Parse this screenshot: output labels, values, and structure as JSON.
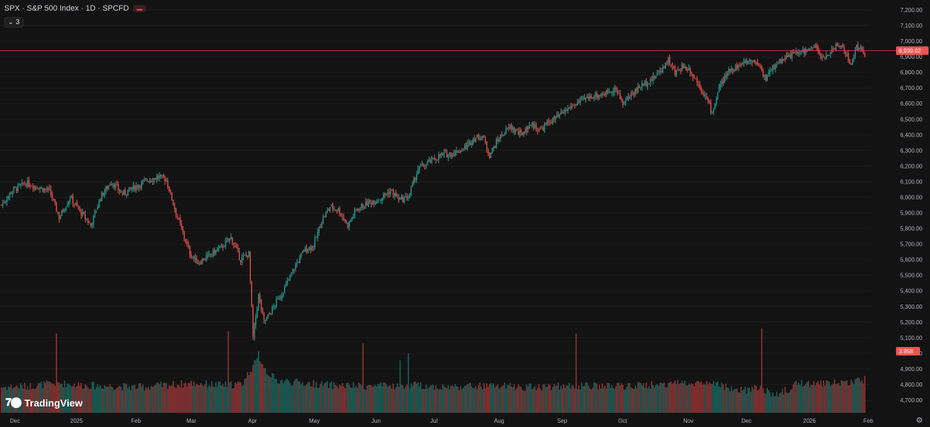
{
  "header": {
    "title": "SPX · S&P 500 Index · 1D · SPCFD",
    "indicator_label": "3"
  },
  "logo": {
    "text": "TradingView"
  },
  "colors": {
    "background": "#131313",
    "up": "#26a69a",
    "down": "#ef5350",
    "volume_up": "#1f6f67",
    "volume_down": "#a43a3a",
    "price_line": "#d04a4a",
    "grid": "#1c1c1c"
  },
  "chart_data": {
    "type": "candlestick",
    "title": "SPX · S&P 500 Index · 1D · SPCFD",
    "ylim": [
      4650,
      7250
    ],
    "y_ticks": [
      "7,200.00",
      "7,100.00",
      "7,000.00",
      "6,900.00",
      "6,800.00",
      "6,700.00",
      "6,600.00",
      "6,500.00",
      "6,400.00",
      "6,300.00",
      "6,200.00",
      "6,100.00",
      "6,000.00",
      "5,900.00",
      "5,800.00",
      "5,700.00",
      "5,600.00",
      "5,500.00",
      "5,400.00",
      "5,300.00",
      "5,200.00",
      "5,100.00",
      "5,000.00",
      "4,900.00",
      "4,800.00",
      "4,700.00"
    ],
    "x_ticks": [
      "Dec",
      "2025",
      "Feb",
      "Mar",
      "Apr",
      "May",
      "Jun",
      "Jul",
      "Aug",
      "Sep",
      "Oct",
      "Nov",
      "Dec",
      "2026",
      "Feb"
    ],
    "last_price": 6939.02,
    "last_price_label": "6,939.02",
    "volume_label": "3.958",
    "close_path": [
      [
        0,
        5950
      ],
      [
        8,
        6045
      ],
      [
        18,
        6090
      ],
      [
        28,
        6060
      ],
      [
        35,
        6040
      ],
      [
        42,
        5870
      ],
      [
        50,
        6000
      ],
      [
        58,
        5900
      ],
      [
        65,
        5820
      ],
      [
        72,
        6000
      ],
      [
        80,
        6100
      ],
      [
        88,
        6020
      ],
      [
        96,
        6060
      ],
      [
        106,
        6110
      ],
      [
        115,
        6130
      ],
      [
        120,
        6110
      ],
      [
        127,
        5900
      ],
      [
        137,
        5640
      ],
      [
        143,
        5580
      ],
      [
        150,
        5620
      ],
      [
        160,
        5680
      ],
      [
        167,
        5740
      ],
      [
        174,
        5600
      ],
      [
        180,
        5640
      ],
      [
        183,
        5100
      ],
      [
        187,
        5370
      ],
      [
        191,
        5200
      ],
      [
        195,
        5250
      ],
      [
        200,
        5330
      ],
      [
        205,
        5400
      ],
      [
        212,
        5530
      ],
      [
        220,
        5660
      ],
      [
        227,
        5690
      ],
      [
        233,
        5850
      ],
      [
        239,
        5940
      ],
      [
        245,
        5920
      ],
      [
        252,
        5820
      ],
      [
        258,
        5920
      ],
      [
        266,
        5960
      ],
      [
        275,
        5990
      ],
      [
        283,
        6040
      ],
      [
        290,
        5980
      ],
      [
        296,
        6000
      ],
      [
        303,
        6180
      ],
      [
        312,
        6230
      ],
      [
        320,
        6270
      ],
      [
        328,
        6280
      ],
      [
        336,
        6310
      ],
      [
        344,
        6380
      ],
      [
        350,
        6390
      ],
      [
        355,
        6270
      ],
      [
        362,
        6380
      ],
      [
        370,
        6450
      ],
      [
        378,
        6400
      ],
      [
        385,
        6470
      ],
      [
        392,
        6430
      ],
      [
        398,
        6480
      ],
      [
        406,
        6520
      ],
      [
        414,
        6580
      ],
      [
        422,
        6620
      ],
      [
        430,
        6650
      ],
      [
        438,
        6660
      ],
      [
        446,
        6700
      ],
      [
        452,
        6600
      ],
      [
        458,
        6660
      ],
      [
        466,
        6720
      ],
      [
        474,
        6760
      ],
      [
        480,
        6820
      ],
      [
        485,
        6880
      ],
      [
        490,
        6790
      ],
      [
        495,
        6840
      ],
      [
        500,
        6820
      ],
      [
        506,
        6740
      ],
      [
        512,
        6650
      ],
      [
        517,
        6540
      ],
      [
        522,
        6700
      ],
      [
        530,
        6820
      ],
      [
        538,
        6850
      ],
      [
        545,
        6880
      ],
      [
        551,
        6850
      ],
      [
        556,
        6760
      ],
      [
        562,
        6840
      ],
      [
        570,
        6900
      ],
      [
        578,
        6920
      ],
      [
        586,
        6940
      ],
      [
        592,
        6960
      ],
      [
        598,
        6880
      ],
      [
        605,
        6960
      ],
      [
        612,
        6970
      ],
      [
        618,
        6840
      ],
      [
        622,
        6970
      ],
      [
        628,
        6920
      ]
    ],
    "volume_path": [
      [
        0,
        0.26
      ],
      [
        20,
        0.27
      ],
      [
        40,
        0.3
      ],
      [
        60,
        0.28
      ],
      [
        80,
        0.27
      ],
      [
        100,
        0.26
      ],
      [
        120,
        0.28
      ],
      [
        140,
        0.3
      ],
      [
        160,
        0.28
      ],
      [
        175,
        0.29
      ],
      [
        183,
        0.48
      ],
      [
        188,
        0.55
      ],
      [
        193,
        0.42
      ],
      [
        200,
        0.33
      ],
      [
        220,
        0.3
      ],
      [
        240,
        0.28
      ],
      [
        260,
        0.27
      ],
      [
        280,
        0.27
      ],
      [
        300,
        0.28
      ],
      [
        320,
        0.26
      ],
      [
        340,
        0.27
      ],
      [
        360,
        0.27
      ],
      [
        380,
        0.26
      ],
      [
        400,
        0.27
      ],
      [
        420,
        0.27
      ],
      [
        440,
        0.27
      ],
      [
        460,
        0.27
      ],
      [
        480,
        0.29
      ],
      [
        500,
        0.31
      ],
      [
        520,
        0.29
      ],
      [
        535,
        0.22
      ],
      [
        550,
        0.25
      ],
      [
        565,
        0.18
      ],
      [
        580,
        0.3
      ],
      [
        600,
        0.3
      ],
      [
        615,
        0.31
      ],
      [
        628,
        0.34
      ]
    ],
    "volume_spikes": [
      [
        40,
        0.8
      ],
      [
        165,
        0.82
      ],
      [
        187,
        0.62
      ],
      [
        263,
        0.7
      ],
      [
        290,
        0.53
      ],
      [
        296,
        0.6
      ],
      [
        418,
        0.8
      ],
      [
        553,
        0.85
      ]
    ]
  }
}
